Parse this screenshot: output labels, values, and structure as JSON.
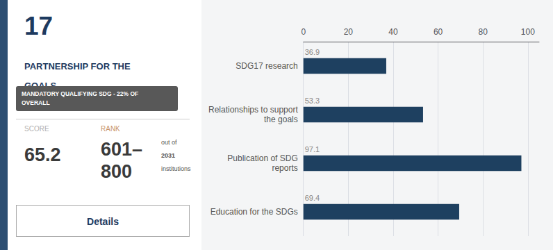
{
  "chart_data": {
    "type": "bar",
    "orientation": "horizontal",
    "title": "PARTNERSHIP FOR THE\nGOALS",
    "annotations": [
      "17",
      "MANDATORY QUALIFYING SDG - 22% OF\nOVERALL",
      "SCORE",
      "65.2",
      "RANK",
      "601–",
      "out of",
      "2031",
      "institutions",
      "800",
      "Details"
    ],
    "categories": [
      "SDG17 research",
      "Relationships to support\nthe goals",
      "Publication of SDG\nreports",
      "Education for the SDGs"
    ],
    "values": [
      36.9,
      53.3,
      97.1,
      69.4
    ],
    "color": "#1e4060",
    "xlim": [
      0,
      105
    ],
    "xticks": [
      0,
      20,
      40,
      60,
      80,
      100
    ],
    "grid": true,
    "data_labels": true
  }
}
